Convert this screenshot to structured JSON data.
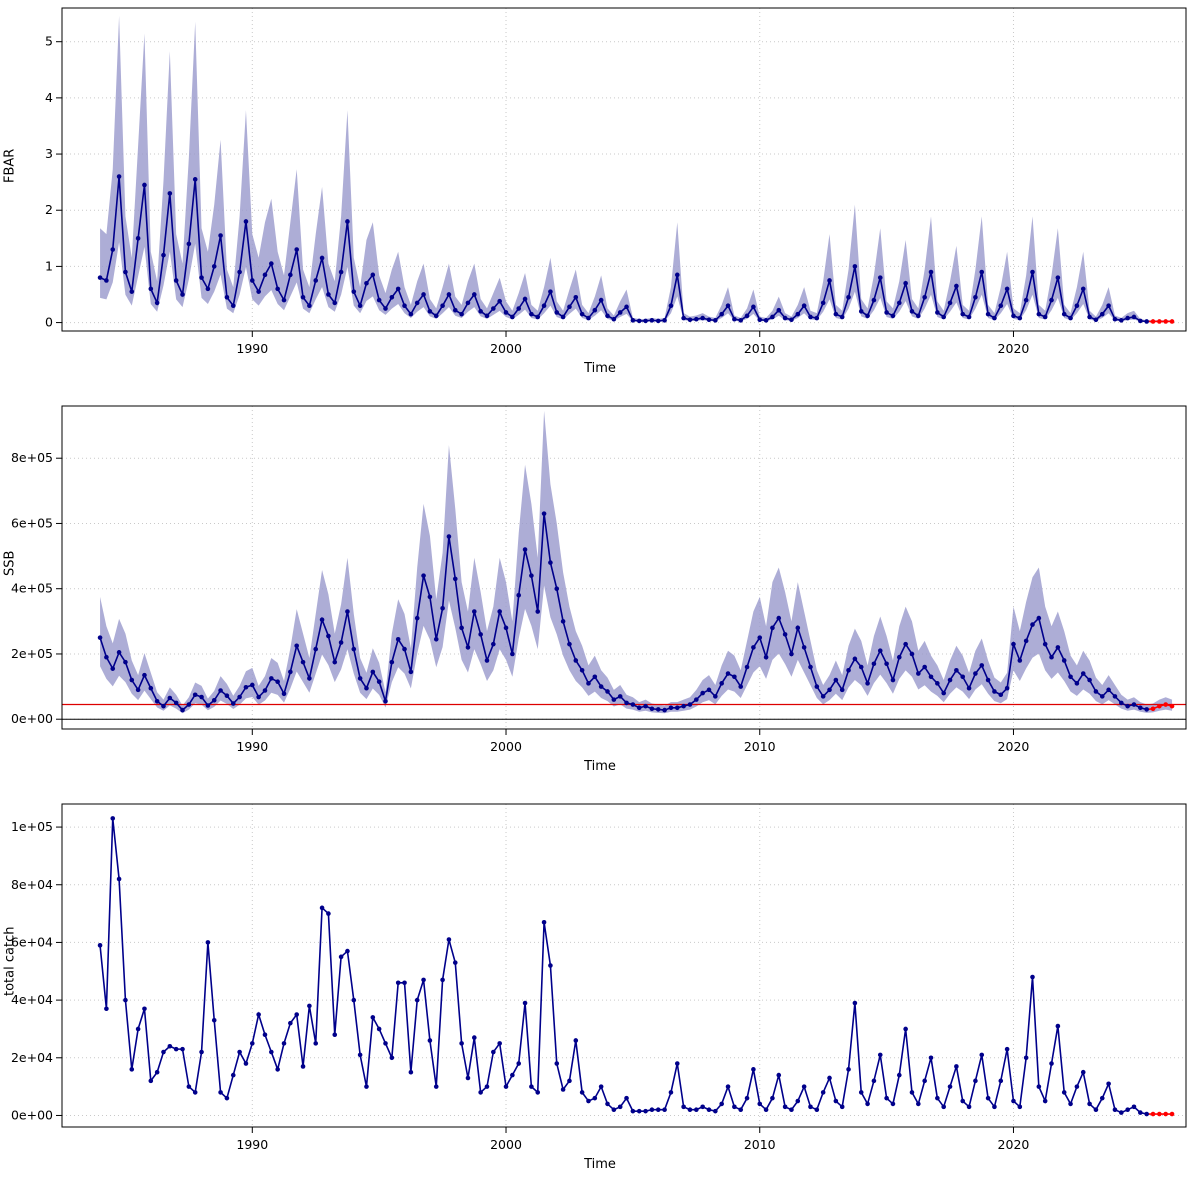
{
  "colors": {
    "median_line": "#00008B",
    "band_fill": "#9999CC",
    "forecast": "#FF0000",
    "reference_line": "#DD0000",
    "grid": "#C9C9C9",
    "axis": "#000000"
  },
  "time": {
    "start": 1984,
    "step": 0.25,
    "n": 170
  },
  "chart_data": [
    {
      "type": "line",
      "name": "fbar",
      "title": "",
      "ylabel": "FBAR",
      "xlabel": "Time",
      "legend": "none",
      "grid": "dashed",
      "xlim": [
        1982.5,
        2026.8
      ],
      "ylim": [
        -0.15,
        5.6
      ],
      "xticks": [
        1990,
        2000,
        2010,
        2020
      ],
      "xtick_labels": [
        "1990",
        "2000",
        "2010",
        "2020"
      ],
      "yticks": [
        0,
        1,
        2,
        3,
        4,
        5
      ],
      "ytick_labels": [
        "0",
        "1",
        "2",
        "3",
        "4",
        "5"
      ],
      "forecast_points": 4,
      "band": {
        "hi_factor": 2.1,
        "lo_factor": 0.55
      },
      "values": [
        0.8,
        0.75,
        1.3,
        2.6,
        0.9,
        0.55,
        1.5,
        2.45,
        0.6,
        0.35,
        1.2,
        2.3,
        0.75,
        0.5,
        1.4,
        2.55,
        0.8,
        0.6,
        1.0,
        1.55,
        0.45,
        0.3,
        0.9,
        1.8,
        0.75,
        0.55,
        0.85,
        1.05,
        0.6,
        0.4,
        0.85,
        1.3,
        0.45,
        0.3,
        0.75,
        1.15,
        0.5,
        0.35,
        0.9,
        1.8,
        0.55,
        0.3,
        0.7,
        0.85,
        0.4,
        0.25,
        0.45,
        0.6,
        0.3,
        0.15,
        0.35,
        0.5,
        0.2,
        0.12,
        0.3,
        0.5,
        0.22,
        0.15,
        0.35,
        0.5,
        0.2,
        0.12,
        0.25,
        0.38,
        0.18,
        0.1,
        0.25,
        0.42,
        0.15,
        0.1,
        0.3,
        0.55,
        0.18,
        0.1,
        0.28,
        0.45,
        0.15,
        0.08,
        0.22,
        0.4,
        0.12,
        0.06,
        0.18,
        0.28,
        0.04,
        0.03,
        0.03,
        0.04,
        0.03,
        0.04,
        0.3,
        0.85,
        0.08,
        0.05,
        0.06,
        0.08,
        0.05,
        0.04,
        0.15,
        0.3,
        0.06,
        0.04,
        0.12,
        0.28,
        0.05,
        0.04,
        0.1,
        0.22,
        0.08,
        0.05,
        0.15,
        0.3,
        0.1,
        0.08,
        0.35,
        0.75,
        0.15,
        0.1,
        0.45,
        1.0,
        0.2,
        0.12,
        0.4,
        0.8,
        0.18,
        0.12,
        0.35,
        0.7,
        0.2,
        0.12,
        0.45,
        0.9,
        0.18,
        0.1,
        0.35,
        0.65,
        0.15,
        0.1,
        0.45,
        0.9,
        0.15,
        0.08,
        0.3,
        0.6,
        0.12,
        0.08,
        0.4,
        0.9,
        0.15,
        0.1,
        0.4,
        0.8,
        0.15,
        0.08,
        0.3,
        0.6,
        0.1,
        0.05,
        0.15,
        0.3,
        0.06,
        0.04,
        0.08,
        0.1,
        0.03,
        0.02,
        0.02,
        0.02,
        0.02,
        0.02
      ]
    },
    {
      "type": "line",
      "name": "ssb",
      "title": "",
      "ylabel": "SSB",
      "xlabel": "Time",
      "legend": "none",
      "grid": "dashed",
      "value_scale": 1000,
      "xlim": [
        1982.5,
        2026.8
      ],
      "ylim": [
        -30,
        960
      ],
      "xticks": [
        1990,
        2000,
        2010,
        2020
      ],
      "xtick_labels": [
        "1990",
        "2000",
        "2010",
        "2020"
      ],
      "yticks": [
        0,
        200,
        400,
        600,
        800
      ],
      "ytick_labels": [
        "0e+00",
        "2e+05",
        "4e+05",
        "6e+05",
        "8e+05"
      ],
      "forecast_points": 4,
      "band": {
        "hi_factor": 1.5,
        "lo_factor": 0.65
      },
      "ref_line": 45,
      "zero_line": true,
      "values": [
        250,
        190,
        155,
        205,
        175,
        120,
        90,
        135,
        95,
        55,
        40,
        65,
        50,
        28,
        45,
        75,
        68,
        42,
        58,
        88,
        72,
        48,
        68,
        98,
        105,
        68,
        88,
        125,
        115,
        78,
        145,
        225,
        175,
        125,
        215,
        305,
        255,
        175,
        235,
        330,
        215,
        125,
        95,
        145,
        115,
        55,
        175,
        245,
        215,
        145,
        310,
        440,
        375,
        245,
        340,
        560,
        430,
        280,
        220,
        330,
        260,
        180,
        230,
        330,
        280,
        200,
        380,
        520,
        440,
        330,
        630,
        480,
        400,
        300,
        230,
        180,
        150,
        110,
        130,
        100,
        85,
        60,
        70,
        50,
        45,
        35,
        40,
        32,
        30,
        28,
        35,
        35,
        40,
        45,
        60,
        80,
        90,
        70,
        110,
        140,
        130,
        100,
        160,
        220,
        250,
        190,
        280,
        310,
        260,
        200,
        280,
        220,
        160,
        100,
        70,
        90,
        120,
        90,
        150,
        185,
        160,
        110,
        170,
        210,
        170,
        120,
        190,
        230,
        200,
        140,
        160,
        130,
        110,
        80,
        120,
        150,
        130,
        95,
        140,
        165,
        120,
        85,
        75,
        95,
        230,
        180,
        240,
        290,
        310,
        230,
        190,
        220,
        180,
        130,
        110,
        140,
        120,
        85,
        70,
        90,
        70,
        50,
        40,
        45,
        35,
        30,
        32,
        40,
        45,
        40
      ]
    },
    {
      "type": "line",
      "name": "total_catch",
      "title": "",
      "ylabel": "total catch",
      "xlabel": "Time",
      "legend": "none",
      "grid": "dashed",
      "value_scale": 1000,
      "xlim": [
        1982.5,
        2026.8
      ],
      "ylim": [
        -4,
        108
      ],
      "xticks": [
        1990,
        2000,
        2010,
        2020
      ],
      "xtick_labels": [
        "1990",
        "2000",
        "2010",
        "2020"
      ],
      "yticks": [
        0,
        20,
        40,
        60,
        80,
        100
      ],
      "ytick_labels": [
        "0e+00",
        "2e+04",
        "4e+04",
        "6e+04",
        "8e+04",
        "1e+05"
      ],
      "forecast_points": 4,
      "values": [
        59,
        37,
        103,
        82,
        40,
        16,
        30,
        37,
        12,
        15,
        22,
        24,
        23,
        23,
        10,
        8,
        22,
        60,
        33,
        8,
        6,
        14,
        22,
        18,
        25,
        35,
        28,
        22,
        16,
        25,
        32,
        35,
        17,
        38,
        25,
        72,
        70,
        28,
        55,
        57,
        40,
        21,
        10,
        34,
        30,
        25,
        20,
        46,
        46,
        15,
        40,
        47,
        26,
        10,
        47,
        61,
        53,
        25,
        13,
        27,
        8,
        10,
        22,
        25,
        10,
        14,
        18,
        39,
        10,
        8,
        67,
        52,
        18,
        9,
        12,
        26,
        8,
        5,
        6,
        10,
        4,
        2,
        3,
        6,
        1.5,
        1.5,
        1.5,
        2,
        2,
        2,
        8,
        18,
        3,
        2,
        2,
        3,
        2,
        1.5,
        4,
        10,
        3,
        2,
        6,
        16,
        4,
        2,
        6,
        14,
        3,
        2,
        5,
        10,
        3,
        2,
        8,
        13,
        5,
        3,
        16,
        39,
        8,
        4,
        12,
        21,
        6,
        4,
        14,
        30,
        8,
        4,
        12,
        20,
        6,
        3,
        10,
        17,
        5,
        3,
        12,
        21,
        6,
        3,
        12,
        23,
        5,
        3,
        20,
        48,
        10,
        5,
        18,
        31,
        8,
        4,
        10,
        15,
        4,
        2,
        6,
        11,
        2,
        1,
        2,
        3,
        1,
        0.5,
        0.5,
        0.5,
        0.5,
        0.5
      ]
    }
  ]
}
